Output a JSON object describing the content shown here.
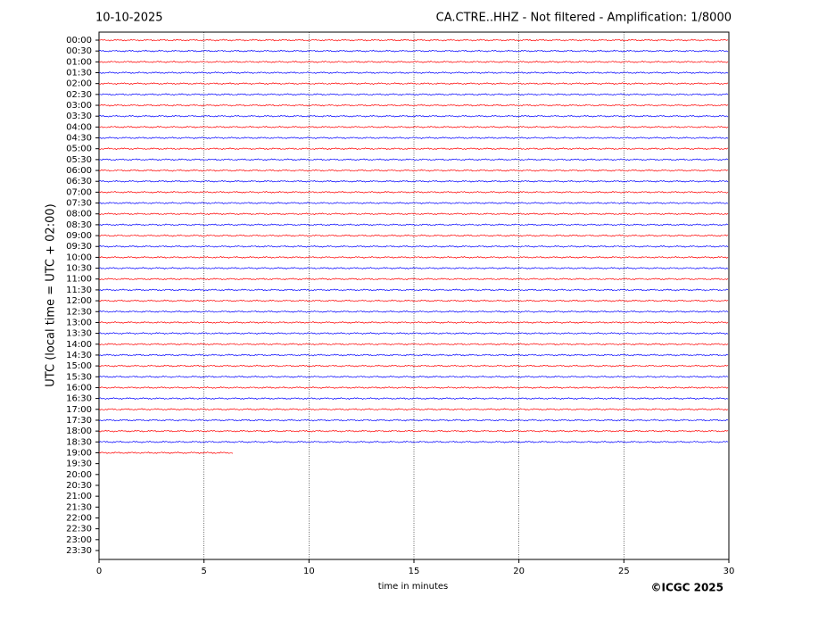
{
  "chart_data": {
    "type": "helicorder",
    "date": "10-10-2025",
    "title": "CA.CTRE..HHZ - Not filtered - Amplification: 1/8000",
    "x_label": "time in minutes",
    "y_label": "UTC (local time = UTC + 02:00)",
    "credit": "©ICGC 2025",
    "categories": [
      "00:00",
      "00:30",
      "01:00",
      "01:30",
      "02:00",
      "02:30",
      "03:00",
      "03:30",
      "04:00",
      "04:30",
      "05:00",
      "05:30",
      "06:00",
      "06:30",
      "07:00",
      "07:30",
      "08:00",
      "08:30",
      "09:00",
      "09:30",
      "10:00",
      "10:30",
      "11:00",
      "11:30",
      "12:00",
      "12:30",
      "13:00",
      "13:30",
      "14:00",
      "14:30",
      "15:00",
      "15:30",
      "16:00",
      "16:30",
      "17:00",
      "17:30",
      "18:00",
      "18:30",
      "19:00",
      "19:30",
      "20:00",
      "20:30",
      "21:00",
      "21:30",
      "22:00",
      "22:30",
      "23:00",
      "23:30"
    ],
    "colors": [
      "#ff0000",
      "#0000ff"
    ],
    "xlim": [
      0,
      30
    ],
    "xticks": [
      0,
      5,
      10,
      15,
      20,
      25,
      30
    ],
    "trace_rows": 39,
    "trace_end": 6.4,
    "grid": true
  }
}
